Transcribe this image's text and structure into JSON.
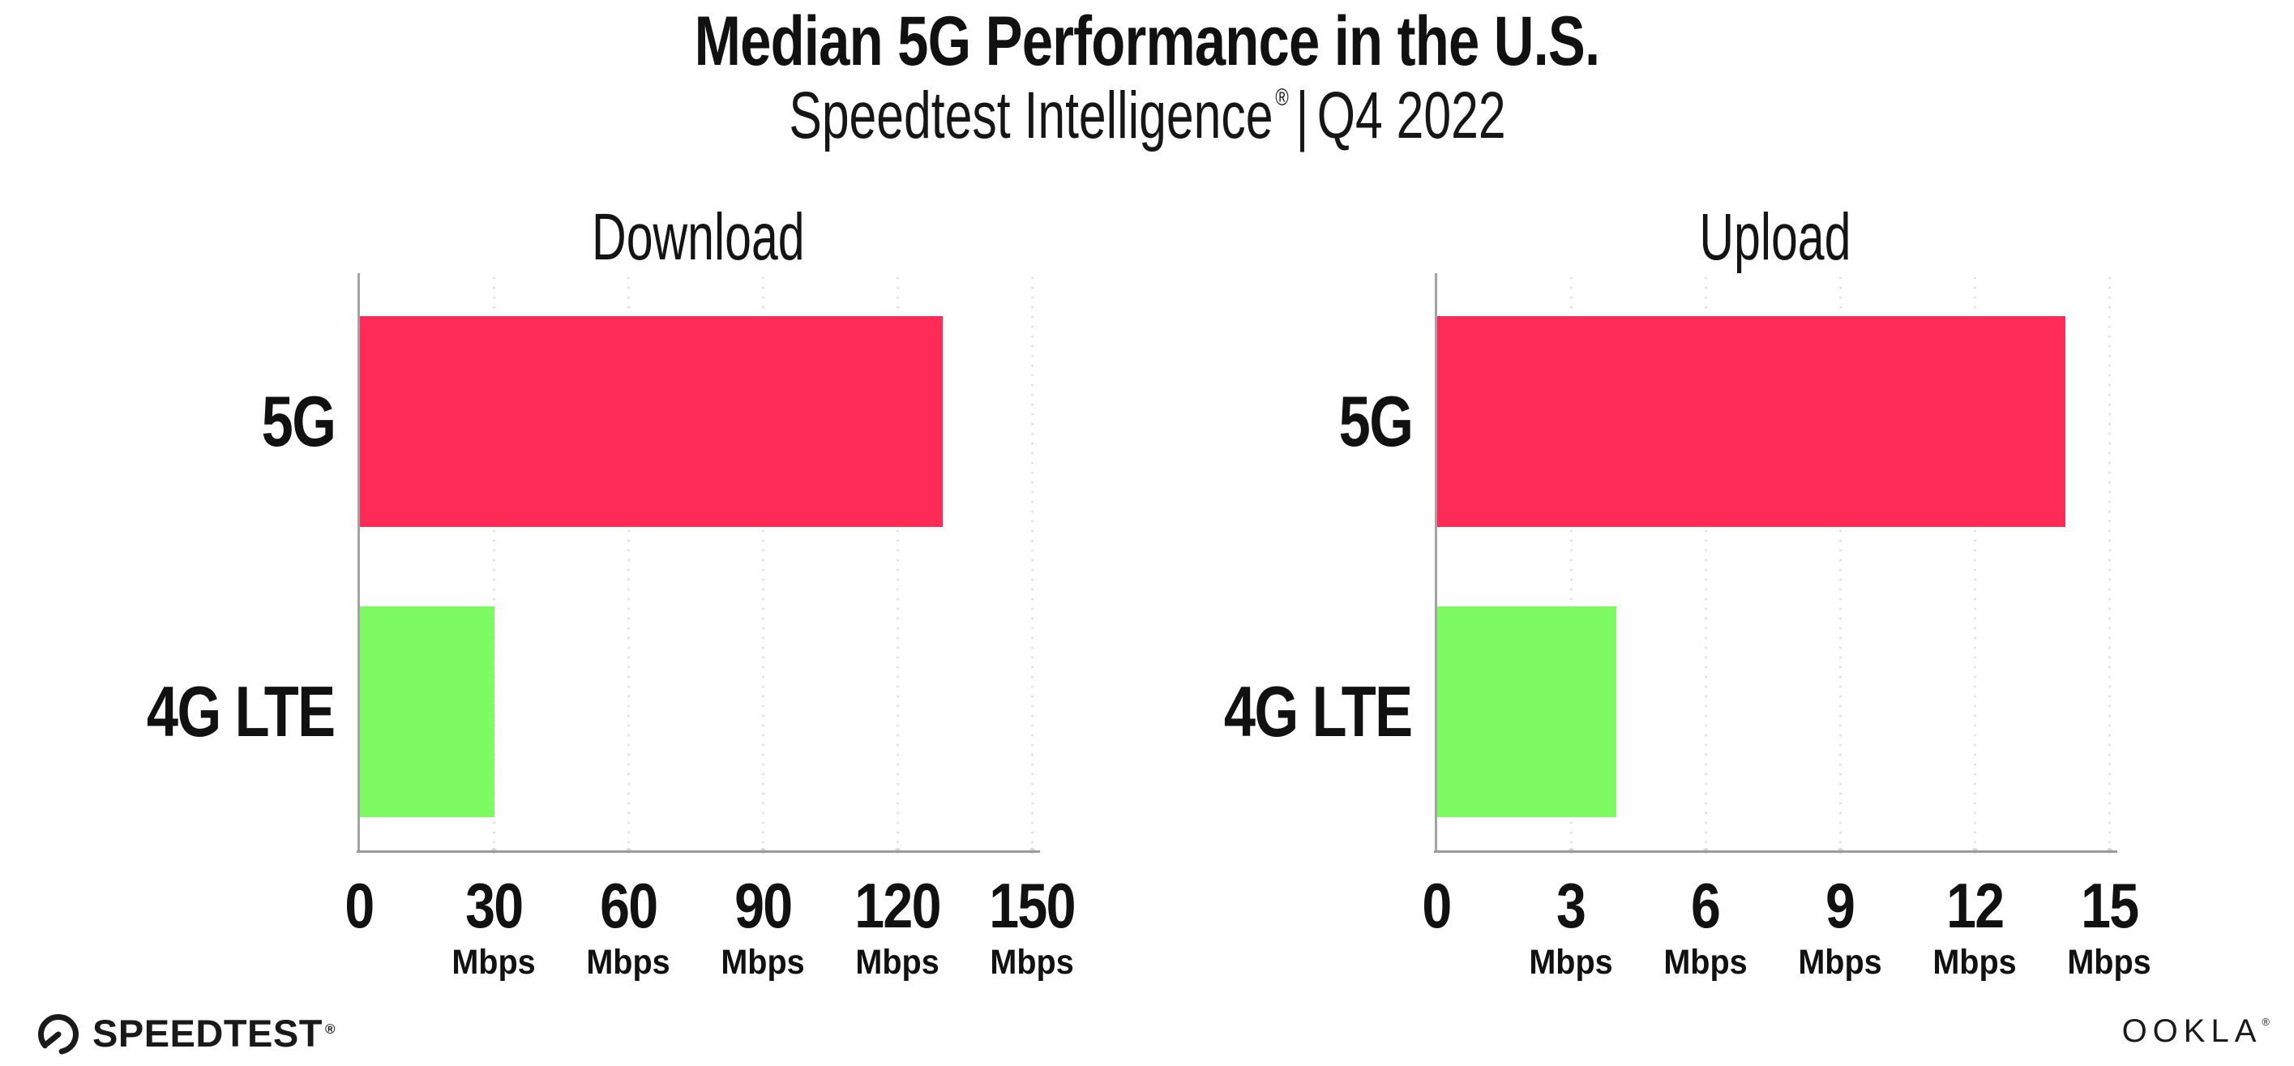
{
  "header": {
    "title": "Median 5G Performance in the U.S.",
    "subtitle_brand": "Speedtest Intelligence",
    "subtitle_registered": "®",
    "subtitle_separator": "|",
    "subtitle_period": "Q4 2022"
  },
  "chart_data": [
    {
      "type": "bar",
      "orientation": "horizontal",
      "title": "Download",
      "unit": "Mbps",
      "axis_max": 150,
      "xlim": [
        0,
        150
      ],
      "tick_values": [
        0,
        30,
        60,
        90,
        120,
        150
      ],
      "ticks": [
        "0",
        "30",
        "60",
        "90",
        "120",
        "150"
      ],
      "categories": [
        "5G",
        "4G LTE"
      ],
      "series": [
        {
          "name": "5G",
          "value": 130,
          "color": "#FF2B57"
        },
        {
          "name": "4G LTE",
          "value": 30,
          "color": "#7EFB63"
        }
      ],
      "grid": "dotted vertical gridlines at each tick",
      "legend": "none"
    },
    {
      "type": "bar",
      "orientation": "horizontal",
      "title": "Upload",
      "unit": "Mbps",
      "axis_max": 15,
      "xlim": [
        0,
        15
      ],
      "tick_values": [
        0,
        3,
        6,
        9,
        12,
        15
      ],
      "ticks": [
        "0",
        "3",
        "6",
        "9",
        "12",
        "15"
      ],
      "categories": [
        "5G",
        "4G LTE"
      ],
      "series": [
        {
          "name": "5G",
          "value": 14,
          "color": "#FF2B57"
        },
        {
          "name": "4G LTE",
          "value": 4,
          "color": "#7EFB63"
        }
      ],
      "grid": "dotted vertical gridlines at each tick",
      "legend": "none"
    }
  ],
  "footer": {
    "speedtest_label": "SPEEDTEST",
    "speedtest_registered": "®",
    "ookla_label": "OOKLA",
    "ookla_registered": "®"
  },
  "colors": {
    "bar_5g": "#FF2B57",
    "bar_4g_lte": "#7EFB63",
    "axis_line": "#9B9B9B",
    "grid_dots": "#DFDFE9",
    "text": "#111111"
  }
}
